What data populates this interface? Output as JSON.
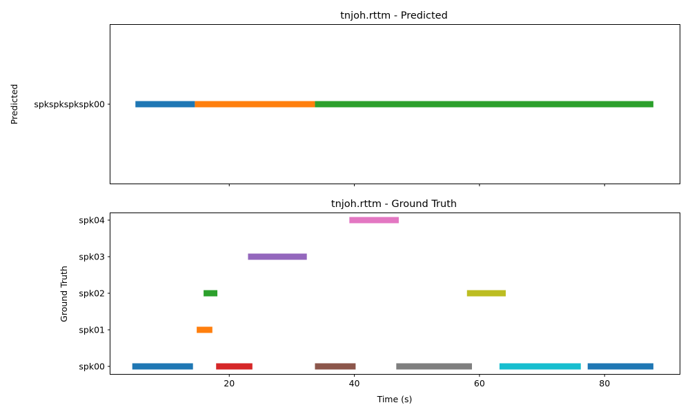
{
  "chart_data": [
    {
      "type": "timeline",
      "title": "tnjoh.rttm - Predicted",
      "xlabel": "",
      "ylabel": "Predicted",
      "xlim": [
        1,
        92
      ],
      "xticks": [
        20,
        40,
        60,
        80
      ],
      "show_xtick_labels": false,
      "yticks": [
        "spkspkspkspk00"
      ],
      "segments": [
        {
          "row": 0,
          "start": 5,
          "end": 14.5,
          "color": "#1f77b4"
        },
        {
          "row": 0,
          "start": 14.5,
          "end": 33.7,
          "color": "#ff7f0e"
        },
        {
          "row": 0,
          "start": 33.7,
          "end": 87.8,
          "color": "#2ca02c"
        }
      ]
    },
    {
      "type": "timeline",
      "title": "tnjoh.rttm - Ground Truth",
      "xlabel": "Time (s)",
      "ylabel": "Ground Truth",
      "xlim": [
        1,
        92
      ],
      "xticks": [
        20,
        40,
        60,
        80
      ],
      "show_xtick_labels": true,
      "yticks": [
        "spk00",
        "spk01",
        "spk02",
        "spk03",
        "spk04"
      ],
      "segments": [
        {
          "row": 0,
          "start": 4.5,
          "end": 14.2,
          "color": "#1f77b4"
        },
        {
          "row": 1,
          "start": 14.8,
          "end": 17.3,
          "color": "#ff7f0e"
        },
        {
          "row": 2,
          "start": 15.9,
          "end": 18.1,
          "color": "#2ca02c"
        },
        {
          "row": 0,
          "start": 17.9,
          "end": 23.7,
          "color": "#d62728"
        },
        {
          "row": 3,
          "start": 23.0,
          "end": 32.4,
          "color": "#9467bd"
        },
        {
          "row": 0,
          "start": 33.7,
          "end": 40.2,
          "color": "#8c564b"
        },
        {
          "row": 4,
          "start": 39.2,
          "end": 47.1,
          "color": "#e377c2"
        },
        {
          "row": 0,
          "start": 46.7,
          "end": 58.8,
          "color": "#7f7f7f"
        },
        {
          "row": 2,
          "start": 58.0,
          "end": 64.2,
          "color": "#bcbd22"
        },
        {
          "row": 0,
          "start": 63.2,
          "end": 76.2,
          "color": "#17becf"
        },
        {
          "row": 0,
          "start": 77.3,
          "end": 87.8,
          "color": "#1f77b4"
        }
      ]
    }
  ]
}
